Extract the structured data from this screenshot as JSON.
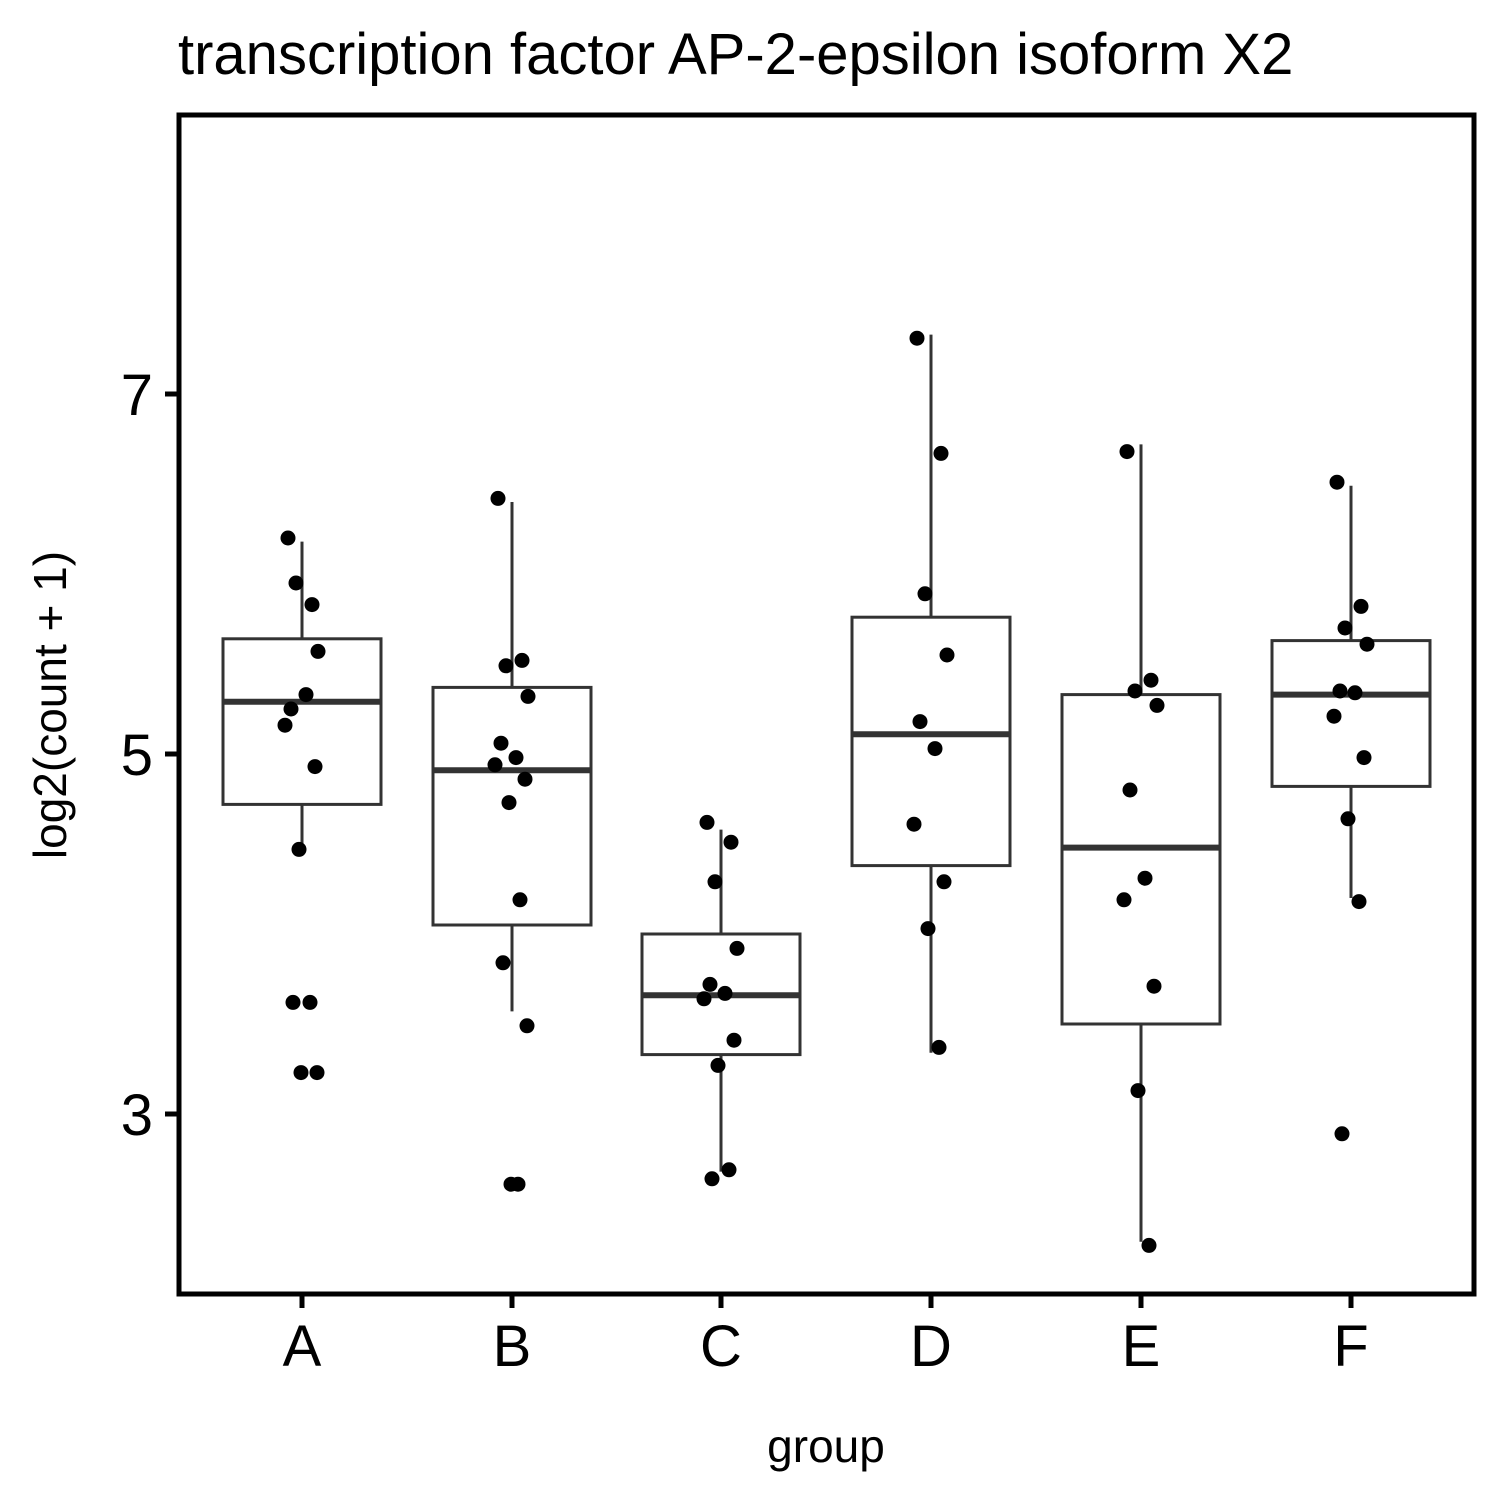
{
  "chart_data": {
    "type": "box",
    "title": "transcription factor AP-2-epsilon isoform X2",
    "xlabel": "group",
    "ylabel": "log2(count + 1)",
    "categories": [
      "A",
      "B",
      "C",
      "D",
      "E",
      "F"
    ],
    "yticks": [
      3,
      5,
      7
    ],
    "ylim": [
      2.0,
      8.55
    ],
    "grid": false,
    "legend": "none",
    "colors": {
      "box_line": "#333333",
      "point": "#000000",
      "frame": "#000000",
      "background": "#ffffff"
    },
    "boxes": [
      {
        "group": "A",
        "whisker_low": 4.5,
        "q1": 4.72,
        "median": 5.29,
        "q3": 5.64,
        "whisker_high": 6.18
      },
      {
        "group": "B",
        "whisker_low": 3.57,
        "q1": 4.05,
        "median": 4.91,
        "q3": 5.37,
        "whisker_high": 6.4
      },
      {
        "group": "C",
        "whisker_low": 2.68,
        "q1": 3.33,
        "median": 3.66,
        "q3": 4.0,
        "whisker_high": 4.58
      },
      {
        "group": "D",
        "whisker_low": 3.34,
        "q1": 4.38,
        "median": 5.11,
        "q3": 5.76,
        "whisker_high": 7.33
      },
      {
        "group": "E",
        "whisker_low": 2.29,
        "q1": 3.5,
        "median": 4.48,
        "q3": 5.33,
        "whisker_high": 6.72
      },
      {
        "group": "F",
        "whisker_low": 4.2,
        "q1": 4.82,
        "median": 5.33,
        "q3": 5.63,
        "whisker_high": 6.49
      }
    ],
    "points": [
      {
        "group": "A",
        "values": [
          6.2,
          5.83,
          5.95,
          5.57,
          5.25,
          5.33,
          5.16,
          4.93,
          4.47,
          3.62,
          3.62,
          3.23,
          3.23
        ]
      },
      {
        "group": "B",
        "values": [
          6.42,
          5.52,
          5.49,
          5.32,
          5.06,
          4.98,
          4.94,
          4.86,
          4.73,
          4.19,
          3.84,
          3.49,
          2.61,
          2.61
        ]
      },
      {
        "group": "C",
        "values": [
          4.62,
          4.51,
          4.29,
          3.92,
          3.72,
          3.67,
          3.64,
          3.41,
          3.27,
          2.69,
          2.64
        ]
      },
      {
        "group": "D",
        "values": [
          7.31,
          6.67,
          5.89,
          5.55,
          5.18,
          5.03,
          4.61,
          4.29,
          4.03,
          3.37
        ]
      },
      {
        "group": "E",
        "values": [
          6.68,
          5.41,
          5.35,
          5.27,
          4.8,
          4.31,
          4.19,
          3.71,
          3.13,
          2.27
        ]
      },
      {
        "group": "F",
        "values": [
          6.51,
          5.82,
          5.7,
          5.61,
          5.35,
          5.34,
          5.21,
          4.98,
          4.64,
          4.18,
          2.89
        ]
      }
    ]
  }
}
